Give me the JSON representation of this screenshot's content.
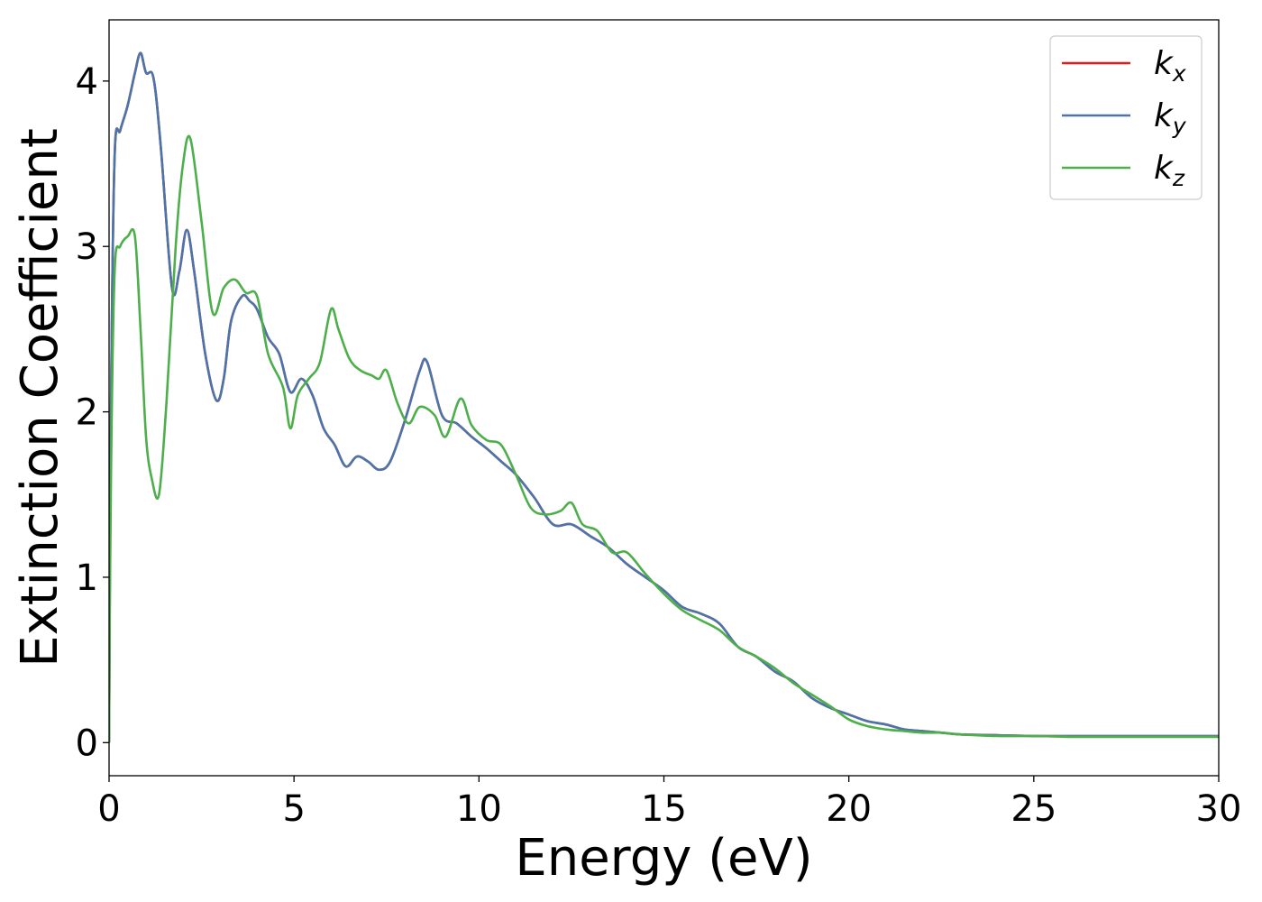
{
  "chart_data": {
    "type": "line",
    "xlabel": "Energy (eV)",
    "ylabel": "Extinction Coefficient",
    "xlim": [
      0,
      30
    ],
    "ylim": [
      -0.2,
      4.37
    ],
    "xticks": [
      0,
      5,
      10,
      15,
      20,
      25,
      30
    ],
    "yticks": [
      0,
      1,
      2,
      3,
      4
    ],
    "grid": false,
    "legend_position": "top-right",
    "series": [
      {
        "name": "k",
        "subscript": "x",
        "color": "#e41a1c",
        "x": [
          0,
          0.05,
          0.15,
          0.3,
          0.5,
          0.7,
          0.85,
          1.0,
          1.2,
          1.4,
          1.7,
          1.9,
          2.1,
          2.3,
          2.6,
          2.9,
          3.1,
          3.3,
          3.6,
          3.8,
          4.0,
          4.3,
          4.6,
          4.9,
          5.2,
          5.5,
          5.8,
          6.1,
          6.4,
          6.7,
          7.0,
          7.3,
          7.6,
          8.0,
          8.4,
          8.6,
          9.0,
          9.4,
          9.8,
          10.2,
          10.6,
          11.0,
          11.5,
          12.0,
          12.5,
          13.0,
          13.5,
          14.0,
          14.5,
          15.0,
          15.5,
          16.0,
          16.5,
          17.0,
          17.5,
          18.0,
          18.5,
          19.0,
          19.5,
          20.0,
          20.5,
          21.0,
          21.5,
          22.0,
          22.5,
          23.0,
          24.0,
          25.0,
          26.0,
          27.0,
          28.0,
          29.0,
          30.0
        ],
        "y": [
          0,
          2.0,
          3.55,
          3.7,
          3.85,
          4.05,
          4.17,
          4.05,
          4.02,
          3.6,
          2.75,
          2.85,
          3.1,
          2.85,
          2.35,
          2.07,
          2.2,
          2.55,
          2.7,
          2.67,
          2.62,
          2.45,
          2.35,
          2.12,
          2.2,
          2.1,
          1.9,
          1.8,
          1.67,
          1.73,
          1.7,
          1.65,
          1.7,
          1.95,
          2.25,
          2.3,
          1.98,
          1.93,
          1.85,
          1.78,
          1.7,
          1.62,
          1.48,
          1.32,
          1.32,
          1.25,
          1.18,
          1.08,
          1.0,
          0.92,
          0.82,
          0.78,
          0.72,
          0.58,
          0.52,
          0.43,
          0.37,
          0.27,
          0.21,
          0.17,
          0.13,
          0.11,
          0.08,
          0.07,
          0.06,
          0.05,
          0.045,
          0.04,
          0.04,
          0.04,
          0.04,
          0.04,
          0.04
        ]
      },
      {
        "name": "k",
        "subscript": "y",
        "color": "#4a75ab",
        "x": [
          0,
          0.05,
          0.15,
          0.3,
          0.5,
          0.7,
          0.85,
          1.0,
          1.2,
          1.4,
          1.7,
          1.9,
          2.1,
          2.3,
          2.6,
          2.9,
          3.1,
          3.3,
          3.6,
          3.8,
          4.0,
          4.3,
          4.6,
          4.9,
          5.2,
          5.5,
          5.8,
          6.1,
          6.4,
          6.7,
          7.0,
          7.3,
          7.6,
          8.0,
          8.4,
          8.6,
          9.0,
          9.4,
          9.8,
          10.2,
          10.6,
          11.0,
          11.5,
          12.0,
          12.5,
          13.0,
          13.5,
          14.0,
          14.5,
          15.0,
          15.5,
          16.0,
          16.5,
          17.0,
          17.5,
          18.0,
          18.5,
          19.0,
          19.5,
          20.0,
          20.5,
          21.0,
          21.5,
          22.0,
          22.5,
          23.0,
          24.0,
          25.0,
          26.0,
          27.0,
          28.0,
          29.0,
          30.0
        ],
        "y": [
          0,
          2.0,
          3.55,
          3.7,
          3.85,
          4.05,
          4.17,
          4.05,
          4.02,
          3.6,
          2.75,
          2.85,
          3.1,
          2.85,
          2.35,
          2.07,
          2.2,
          2.55,
          2.7,
          2.67,
          2.62,
          2.45,
          2.35,
          2.12,
          2.2,
          2.1,
          1.9,
          1.8,
          1.67,
          1.73,
          1.7,
          1.65,
          1.7,
          1.95,
          2.25,
          2.3,
          1.98,
          1.93,
          1.85,
          1.78,
          1.7,
          1.62,
          1.48,
          1.32,
          1.32,
          1.25,
          1.18,
          1.08,
          1.0,
          0.92,
          0.82,
          0.78,
          0.72,
          0.58,
          0.52,
          0.43,
          0.37,
          0.27,
          0.21,
          0.17,
          0.13,
          0.11,
          0.08,
          0.07,
          0.06,
          0.05,
          0.045,
          0.04,
          0.04,
          0.04,
          0.04,
          0.04,
          0.04
        ]
      },
      {
        "name": "k",
        "subscript": "z",
        "color": "#4daf4a",
        "x": [
          0,
          0.05,
          0.15,
          0.3,
          0.5,
          0.7,
          0.85,
          1.0,
          1.15,
          1.35,
          1.55,
          1.8,
          2.0,
          2.2,
          2.5,
          2.8,
          3.1,
          3.4,
          3.7,
          4.0,
          4.3,
          4.7,
          4.9,
          5.1,
          5.4,
          5.7,
          6.0,
          6.2,
          6.5,
          6.8,
          7.1,
          7.3,
          7.5,
          7.8,
          8.1,
          8.4,
          8.8,
          9.1,
          9.5,
          9.8,
          10.2,
          10.6,
          11.0,
          11.4,
          11.8,
          12.2,
          12.5,
          12.8,
          13.2,
          13.6,
          14.0,
          14.5,
          15.0,
          15.5,
          16.0,
          16.5,
          17.0,
          17.5,
          18.0,
          18.5,
          19.0,
          19.5,
          20.0,
          20.5,
          21.0,
          21.5,
          22.0,
          22.5,
          23.0,
          24.0,
          25.0,
          26.0,
          27.0,
          28.0,
          29.0,
          30.0
        ],
        "y": [
          0,
          1.6,
          2.85,
          3.0,
          3.06,
          3.06,
          2.5,
          1.85,
          1.6,
          1.5,
          2.05,
          3.0,
          3.5,
          3.65,
          3.15,
          2.6,
          2.75,
          2.8,
          2.72,
          2.7,
          2.35,
          2.15,
          1.9,
          2.1,
          2.2,
          2.3,
          2.62,
          2.5,
          2.32,
          2.25,
          2.22,
          2.2,
          2.25,
          2.05,
          1.93,
          2.03,
          1.98,
          1.85,
          2.08,
          1.92,
          1.83,
          1.8,
          1.62,
          1.42,
          1.38,
          1.4,
          1.45,
          1.32,
          1.28,
          1.15,
          1.15,
          1.02,
          0.9,
          0.8,
          0.74,
          0.68,
          0.58,
          0.52,
          0.45,
          0.36,
          0.29,
          0.22,
          0.14,
          0.1,
          0.08,
          0.07,
          0.06,
          0.06,
          0.05,
          0.04,
          0.04,
          0.035,
          0.035,
          0.035,
          0.035,
          0.035
        ]
      }
    ]
  }
}
